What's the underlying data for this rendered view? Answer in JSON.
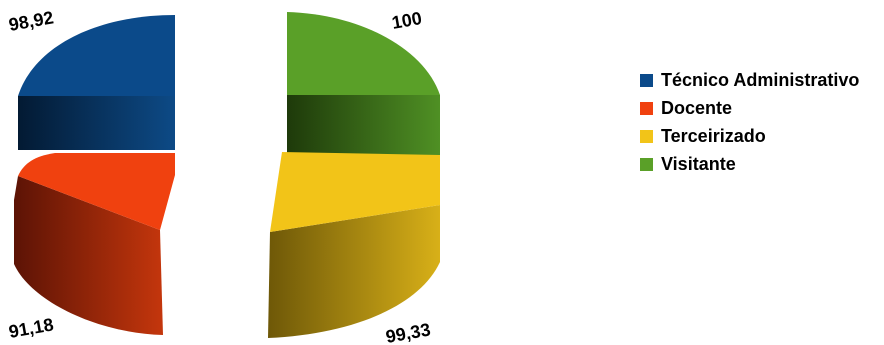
{
  "chart_data": {
    "type": "pie",
    "style": "3d-exploded",
    "title": "",
    "categories": [
      "Técnico Administrativo",
      "Docente",
      "Terceirizado",
      "Visitante"
    ],
    "values": [
      98.92,
      91.18,
      99.33,
      100
    ],
    "value_labels": [
      "98,92",
      "91,18",
      "99,33",
      "100"
    ],
    "colors": [
      "#0b4a8a",
      "#f0410f",
      "#f2c418",
      "#5aa028"
    ],
    "legend_position": "right"
  }
}
